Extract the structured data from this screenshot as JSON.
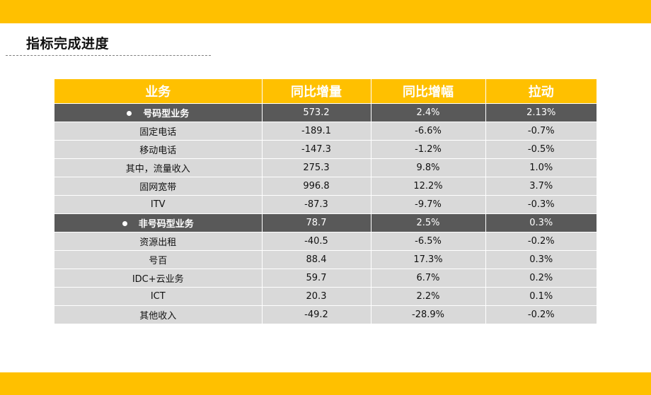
{
  "title": "指标完成进度",
  "colors": {
    "accent": "#FFC000",
    "category_row": "#595959",
    "data_row": "#D9D9D9"
  },
  "table": {
    "headers": [
      "业务",
      "同比增量",
      "同比增幅",
      "拉动"
    ],
    "rows": [
      {
        "kind": "category",
        "icon": "bullet-icon",
        "cells": [
          "号码型业务",
          "573.2",
          "2.4%",
          "2.13%"
        ]
      },
      {
        "kind": "item",
        "cells": [
          "固定电话",
          "-189.1",
          "-6.6%",
          "-0.7%"
        ]
      },
      {
        "kind": "item",
        "cells": [
          "移动电话",
          "-147.3",
          "-1.2%",
          "-0.5%"
        ]
      },
      {
        "kind": "item",
        "cells": [
          "其中，流量收入",
          "275.3",
          "9.8%",
          "1.0%"
        ]
      },
      {
        "kind": "item",
        "cells": [
          "固网宽带",
          "996.8",
          "12.2%",
          "3.7%"
        ]
      },
      {
        "kind": "item",
        "cells": [
          "ITV",
          "-87.3",
          "-9.7%",
          "-0.3%"
        ]
      },
      {
        "kind": "category",
        "icon": "bullet-icon",
        "cells": [
          "非号码型业务",
          "78.7",
          "2.5%",
          "0.3%"
        ]
      },
      {
        "kind": "item",
        "cells": [
          "资源出租",
          "-40.5",
          "-6.5%",
          "-0.2%"
        ]
      },
      {
        "kind": "item",
        "cells": [
          "号百",
          "88.4",
          "17.3%",
          "0.3%"
        ]
      },
      {
        "kind": "item",
        "cells": [
          "IDC+云业务",
          "59.7",
          "6.7%",
          "0.2%"
        ]
      },
      {
        "kind": "item",
        "cells": [
          "ICT",
          "20.3",
          "2.2%",
          "0.1%"
        ]
      },
      {
        "kind": "item",
        "cells": [
          "其他收入",
          "-49.2",
          "-28.9%",
          "-0.2%"
        ]
      }
    ]
  }
}
